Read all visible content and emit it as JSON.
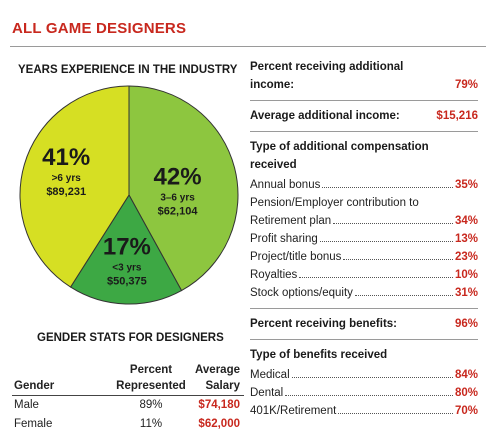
{
  "title": "ALL GAME DESIGNERS",
  "chart_data": {
    "type": "pie",
    "title": "YEARS EXPERIENCE IN THE INDUSTRY",
    "slices": [
      {
        "label": "3–6 yrs",
        "percent_text": "42%",
        "value": 42,
        "salary": "$62,104",
        "color": "#8dc63f"
      },
      {
        "label": "<3 yrs",
        "percent_text": "17%",
        "value": 17,
        "salary": "$50,375",
        "color": "#3da844"
      },
      {
        "label": ">6 yrs",
        "percent_text": "41%",
        "value": 41,
        "salary": "$89,231",
        "color": "#d6df23"
      }
    ]
  },
  "gender": {
    "title": "GENDER STATS FOR DESIGNERS",
    "headers": {
      "gender": "Gender",
      "percent_l1": "Percent",
      "percent_l2": "Represented",
      "salary_l1": "Average",
      "salary_l2": "Salary"
    },
    "rows": [
      {
        "gender": "Male",
        "percent": "89%",
        "salary": "$74,180"
      },
      {
        "gender": "Female",
        "percent": "11%",
        "salary": "$62,000"
      }
    ]
  },
  "additional_income": {
    "label_l1": "Percent receiving additional",
    "label_l2": "income:",
    "value": "79%"
  },
  "average_additional_income": {
    "label": "Average additional income:",
    "value": "$15,216"
  },
  "additional_compensation": {
    "heading_l1": "Type of additional compensation",
    "heading_l2": "received",
    "items": [
      {
        "label": "Annual bonus",
        "value": "35%"
      },
      {
        "label_l1": "Pension/Employer contribution to",
        "label": "Retirement plan",
        "value": "34%"
      },
      {
        "label": "Profit sharing",
        "value": "13%"
      },
      {
        "label": "Project/title bonus",
        "value": "23%"
      },
      {
        "label": "Royalties",
        "value": "10%"
      },
      {
        "label": "Stock options/equity",
        "value": "31%"
      }
    ]
  },
  "benefits": {
    "label": "Percent receiving benefits:",
    "value": "96%"
  },
  "benefit_types": {
    "heading": "Type of benefits received",
    "items": [
      {
        "label": "Medical",
        "value": "84%"
      },
      {
        "label": "Dental",
        "value": "80%"
      },
      {
        "label": "401K/Retirement",
        "value": "70%"
      }
    ]
  }
}
